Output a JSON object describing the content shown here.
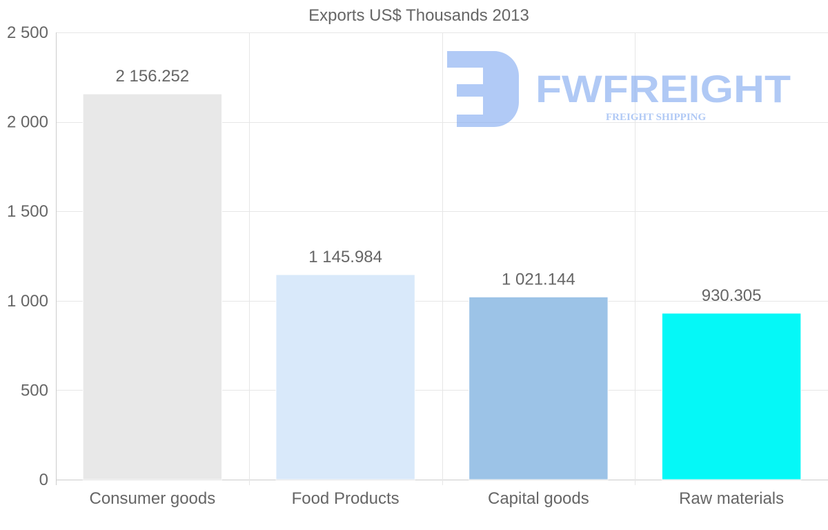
{
  "chart_data": {
    "type": "bar",
    "title": "Exports US$ Thousands 2013",
    "categories": [
      "Consumer goods",
      "Food Products",
      "Capital goods",
      "Raw materials"
    ],
    "values": [
      2156.252,
      1145.984,
      1021.144,
      930.305
    ],
    "value_labels": [
      "2 156.252",
      "1 145.984",
      "1 021.144",
      "930.305"
    ],
    "bar_colors": [
      "#e8e8e8",
      "#d9e9fa",
      "#9cc3e7",
      "#05f8f7"
    ],
    "ylim": [
      0,
      2500
    ],
    "yticks": [
      0,
      500,
      1000,
      1500,
      2000,
      2500
    ],
    "ytick_labels": [
      "0",
      "500",
      "1 000",
      "1 500",
      "2 000",
      "2 500"
    ],
    "xlabel": "",
    "ylabel": "",
    "grid": true,
    "legend": "none"
  },
  "watermark": {
    "brand": "FWFREIGHT",
    "tagline": "FREIGHT SHIPPING",
    "color": "#7da6f0"
  },
  "colors": {
    "text": "#666666",
    "grid": "#e6e6e6",
    "axis": "#cccccc"
  }
}
